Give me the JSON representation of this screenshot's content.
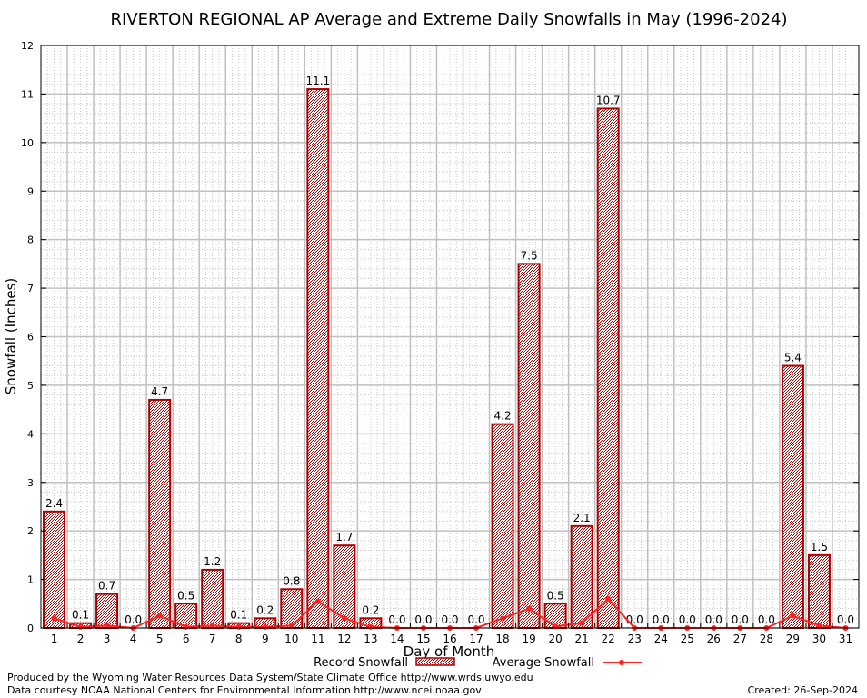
{
  "chart_data": {
    "type": "bar",
    "title": "RIVERTON REGIONAL AP Average and Extreme Daily Snowfalls in May (1996-2024)",
    "xlabel": "Day of Month",
    "ylabel": "Snowfall (Inches)",
    "ylim": [
      0,
      12
    ],
    "yticks": [
      0,
      1,
      2,
      3,
      4,
      5,
      6,
      7,
      8,
      9,
      10,
      11,
      12
    ],
    "grid": true,
    "legend": "bottom",
    "categories": [
      "1",
      "2",
      "3",
      "4",
      "5",
      "6",
      "7",
      "8",
      "9",
      "10",
      "11",
      "12",
      "13",
      "14",
      "15",
      "16",
      "17",
      "18",
      "19",
      "20",
      "21",
      "22",
      "23",
      "24",
      "25",
      "26",
      "27",
      "28",
      "29",
      "30",
      "31"
    ],
    "series": [
      {
        "name": "Record Snowfall",
        "type": "bar",
        "color": "#b00000",
        "values": [
          2.4,
          0.1,
          0.7,
          0.0,
          4.7,
          0.5,
          1.2,
          0.1,
          0.2,
          0.8,
          11.1,
          1.7,
          0.2,
          0.0,
          0.0,
          0.0,
          0.0,
          4.2,
          7.5,
          0.5,
          2.1,
          10.7,
          0.0,
          0.0,
          0.0,
          0.0,
          0.0,
          0.0,
          5.4,
          1.5,
          0.0
        ],
        "labels": [
          "2.4",
          "0.1",
          "0.7",
          "0.0",
          "4.7",
          "0.5",
          "1.2",
          "0.1",
          "0.2",
          "0.8",
          "11.1",
          "1.7",
          "0.2",
          "0.0",
          "0.0",
          "0.0",
          "0.0",
          "4.2",
          "7.5",
          "0.5",
          "2.1",
          "10.7",
          "0.0",
          "0.0",
          "0.0",
          "0.0",
          "0.0",
          "0.0",
          "5.4",
          "1.5",
          "0.0"
        ]
      },
      {
        "name": "Average Snowfall",
        "type": "line",
        "color": "#ff2020",
        "values": [
          0.2,
          0.02,
          0.05,
          0.0,
          0.25,
          0.02,
          0.05,
          0.02,
          0.02,
          0.05,
          0.55,
          0.2,
          0.02,
          0.0,
          0.0,
          0.0,
          0.0,
          0.2,
          0.4,
          0.03,
          0.1,
          0.6,
          0.0,
          0.0,
          0.0,
          0.0,
          0.0,
          0.0,
          0.25,
          0.05,
          0.0
        ]
      }
    ]
  },
  "footer": {
    "produced": "Produced by the Wyoming Water Resources Data System/State Climate Office http://www.wrds.uwyo.edu",
    "courtesy": "Data courtesy NOAA National Centers for Environmental Information http://www.ncei.noaa.gov",
    "created": "Created: 26-Sep-2024"
  }
}
